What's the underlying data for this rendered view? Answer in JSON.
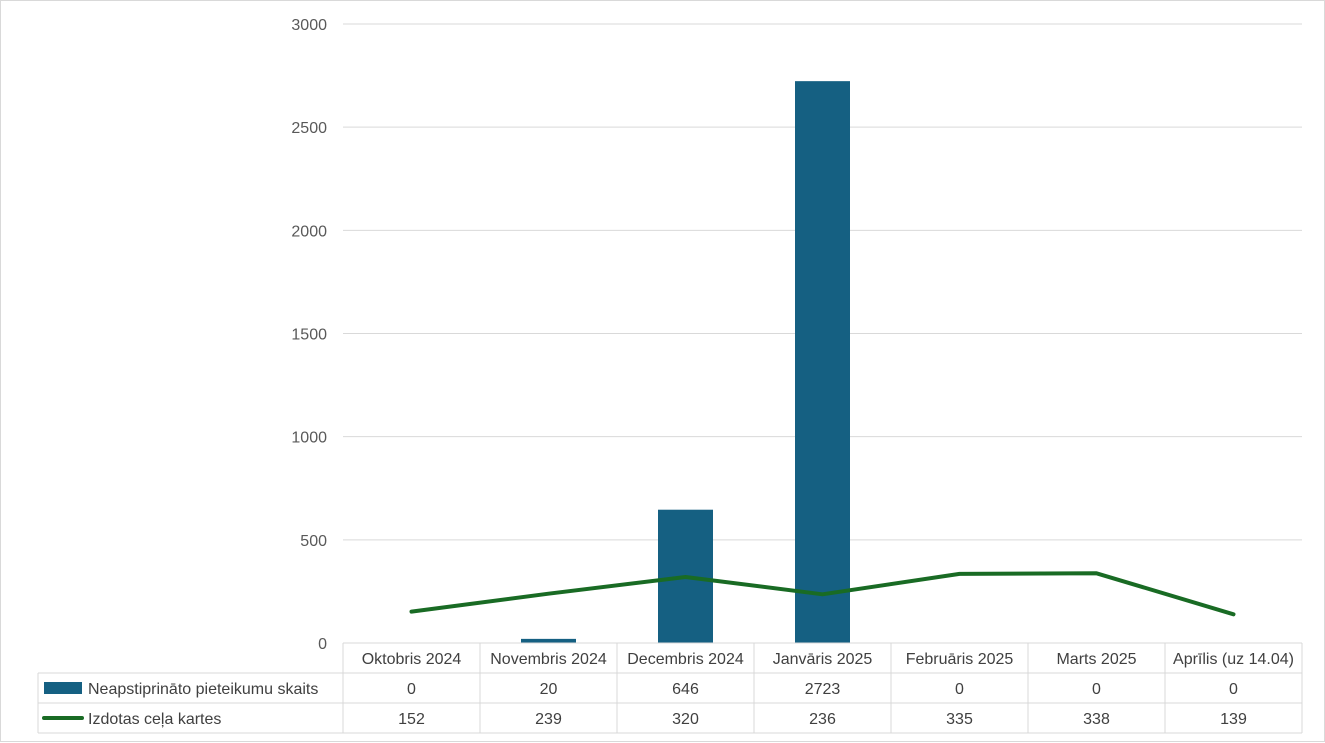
{
  "chart_data": {
    "type": "bar",
    "title": "",
    "xlabel": "",
    "ylabel": "",
    "ylim": [
      0,
      3000
    ],
    "yticks": [
      0,
      500,
      1000,
      1500,
      2000,
      2500,
      3000
    ],
    "grid": true,
    "legend_placement": "data-table",
    "categories": [
      "Oktobris 2024",
      "Novembris 2024",
      "Decembris 2024",
      "Janvāris 2025",
      "Februāris 2025",
      "Marts 2025",
      "Aprīlis (uz 14.04)"
    ],
    "series": [
      {
        "name": "Neapstiprināto pieteikumu skaits",
        "type": "bar",
        "color": "#156082",
        "values": [
          0,
          20,
          646,
          2723,
          0,
          0,
          0
        ]
      },
      {
        "name": "Izdotas ceļa kartes",
        "type": "line",
        "color": "#196b24",
        "values": [
          152,
          239,
          320,
          236,
          335,
          338,
          139
        ]
      }
    ]
  }
}
